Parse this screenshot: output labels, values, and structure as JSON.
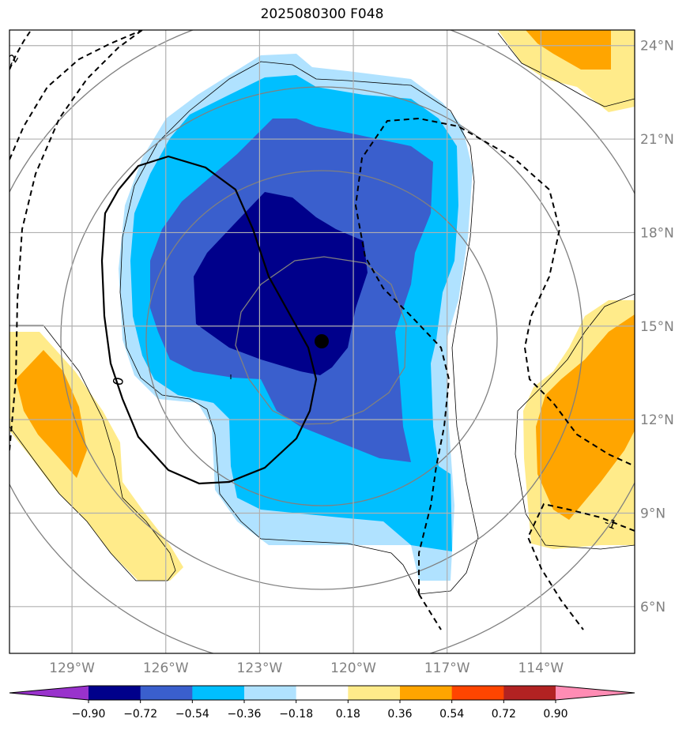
{
  "title": "2025080300 F048",
  "chart_data": {
    "type": "contour-map",
    "title": "2025080300 F048",
    "lon_ticks": [
      "129°W",
      "126°W",
      "123°W",
      "120°W",
      "117°W",
      "114°W"
    ],
    "lat_ticks": [
      "24°N",
      "21°N",
      "18°N",
      "15°N",
      "12°N",
      "9°N",
      "6°N"
    ],
    "lon_values": [
      -129,
      -126,
      -123,
      -120,
      -117,
      -114
    ],
    "lat_values": [
      24,
      21,
      18,
      15,
      12,
      9,
      6
    ],
    "extent": {
      "lon": [
        -131,
        -111
      ],
      "lat": [
        4.5,
        24.5
      ]
    },
    "storm_center": {
      "lon": -121.1,
      "lat": 14.2
    },
    "contour_labels": [
      "0",
      "-1",
      "-2",
      "1"
    ],
    "colorbar": {
      "levels": [
        "−0.90",
        "−0.72",
        "−0.54",
        "−0.36",
        "−0.18",
        "0.18",
        "0.36",
        "0.54",
        "0.72",
        "0.90"
      ],
      "colors": [
        "#9932cc",
        "#00008b",
        "#3a5fcd",
        "#00bfff",
        "#b0e2ff",
        "#ffffff",
        "#ffeb8a",
        "#ffa500",
        "#ff4500",
        "#b22222",
        "#ff8cb4"
      ],
      "extend": "both"
    }
  }
}
